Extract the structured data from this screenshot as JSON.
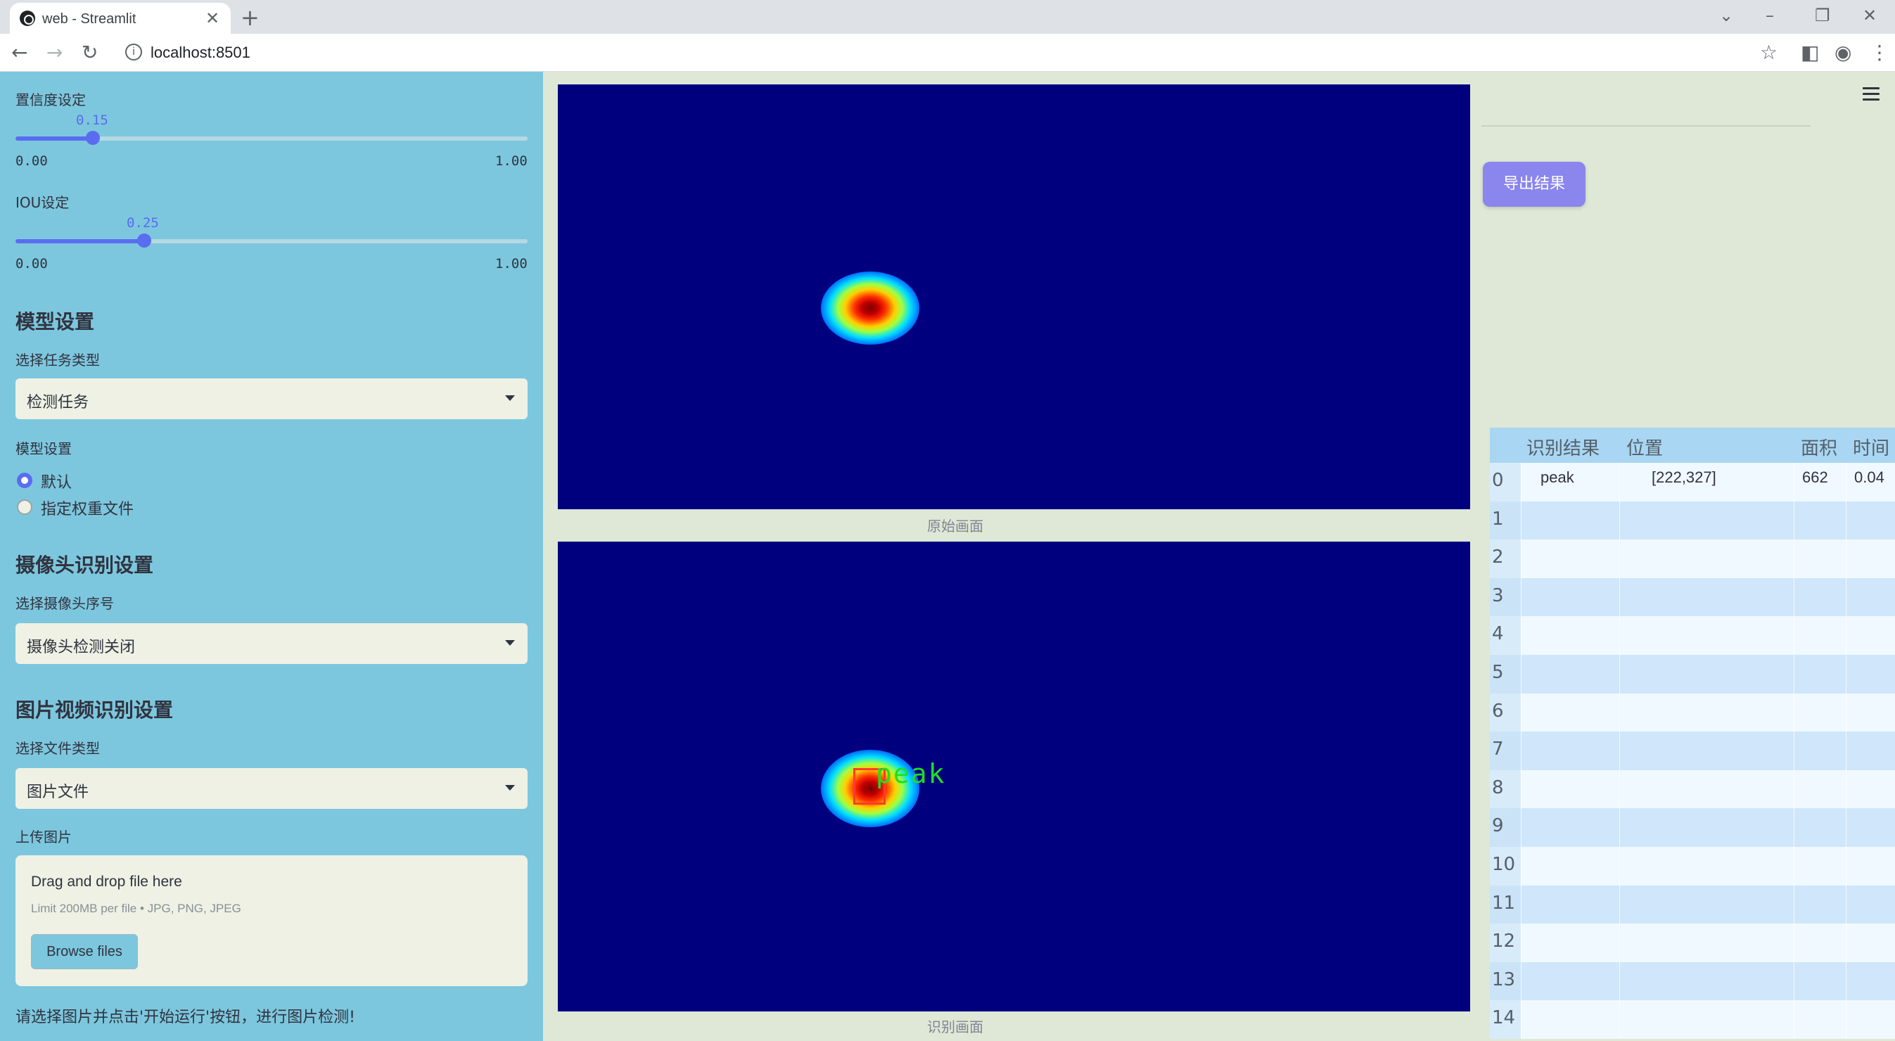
{
  "browser": {
    "tab_title": "web - Streamlit",
    "url": "localhost:8501"
  },
  "sidebar": {
    "confidence": {
      "label": "置信度设定",
      "value": "0.15",
      "min": "0.00",
      "max": "1.00",
      "fraction": 0.15
    },
    "iou": {
      "label": "IOU设定",
      "value": "0.25",
      "min": "0.00",
      "max": "1.00",
      "fraction": 0.25
    },
    "model_section": "模型设置",
    "task_label": "选择任务类型",
    "task_value": "检测任务",
    "model_label": "模型设置",
    "model_options": [
      "默认",
      "指定权重文件"
    ],
    "model_selected": "默认",
    "camera_section": "摄像头识别设置",
    "camera_label": "选择摄像头序号",
    "camera_value": "摄像头检测关闭",
    "media_section": "图片视频识别设置",
    "filetype_label": "选择文件类型",
    "filetype_value": "图片文件",
    "upload_label": "上传图片",
    "uploader": {
      "title": "Drag and drop file here",
      "limit": "Limit 200MB per file • JPG, PNG, JPEG",
      "button": "Browse files"
    },
    "hint": "请选择图片并点击'开始运行'按钮，进行图片检测!"
  },
  "main": {
    "original_caption": "原始画面",
    "result_caption": "识别画面",
    "detection_label": "peak"
  },
  "right": {
    "export_button": "导出结果",
    "table": {
      "columns": [
        "识别结果",
        "位置",
        "面积",
        "时间"
      ],
      "rows": [
        {
          "index": "0",
          "result": "peak",
          "position": "[222,327]",
          "area": "662",
          "time": "0.04"
        },
        {
          "index": "1"
        },
        {
          "index": "2"
        },
        {
          "index": "3"
        },
        {
          "index": "4"
        },
        {
          "index": "5"
        },
        {
          "index": "6"
        },
        {
          "index": "7"
        },
        {
          "index": "8"
        },
        {
          "index": "9"
        },
        {
          "index": "10"
        },
        {
          "index": "11"
        },
        {
          "index": "12"
        },
        {
          "index": "13"
        },
        {
          "index": "14"
        }
      ]
    }
  },
  "colors": {
    "sidebar_bg": "#7cc7de",
    "accent": "#5a6cf0",
    "heatmap_bg": "#00007f",
    "export_button": "#8b85ee",
    "detection_label": "#22dd22"
  }
}
